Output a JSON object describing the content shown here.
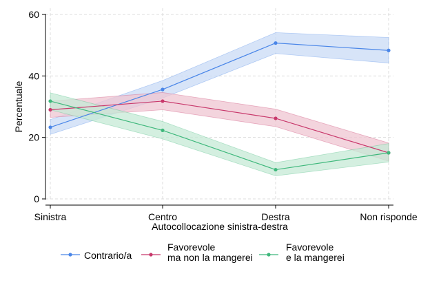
{
  "chart_data": {
    "type": "line",
    "xlabel": "Autocollocazione sinistra-destra",
    "ylabel": "Percentuale",
    "categories": [
      "Sinistra",
      "Centro",
      "Destra",
      "Non risponde"
    ],
    "ylim": [
      0,
      62
    ],
    "yticks": [
      0,
      20,
      40,
      60
    ],
    "grid": true,
    "legend_position": "bottom",
    "series": [
      {
        "name": "Contrario/a",
        "color": "#4a86e8",
        "band_color": "#c9dbf6",
        "values": [
          23.3,
          35.6,
          50.7,
          48.3
        ],
        "lower": [
          21.0,
          32.8,
          47.3,
          44.2
        ],
        "upper": [
          25.8,
          38.5,
          54.1,
          52.5
        ],
        "marker": "circle"
      },
      {
        "name": "Favorevole\nma non la mangerei",
        "color": "#c8386b",
        "band_color": "#efc5d2",
        "values": [
          29.0,
          31.8,
          26.2,
          15.0
        ],
        "lower": [
          26.5,
          29.0,
          23.5,
          12.3
        ],
        "upper": [
          31.8,
          34.6,
          29.2,
          18.2
        ],
        "marker": "circle"
      },
      {
        "name": "Favorevole\ne la mangerei",
        "color": "#3fb87c",
        "band_color": "#c6ead6",
        "values": [
          31.8,
          22.3,
          9.5,
          15.0
        ],
        "lower": [
          29.0,
          19.5,
          7.5,
          12.0
        ],
        "upper": [
          34.5,
          25.2,
          11.8,
          18.0
        ],
        "marker": "circle"
      }
    ]
  }
}
